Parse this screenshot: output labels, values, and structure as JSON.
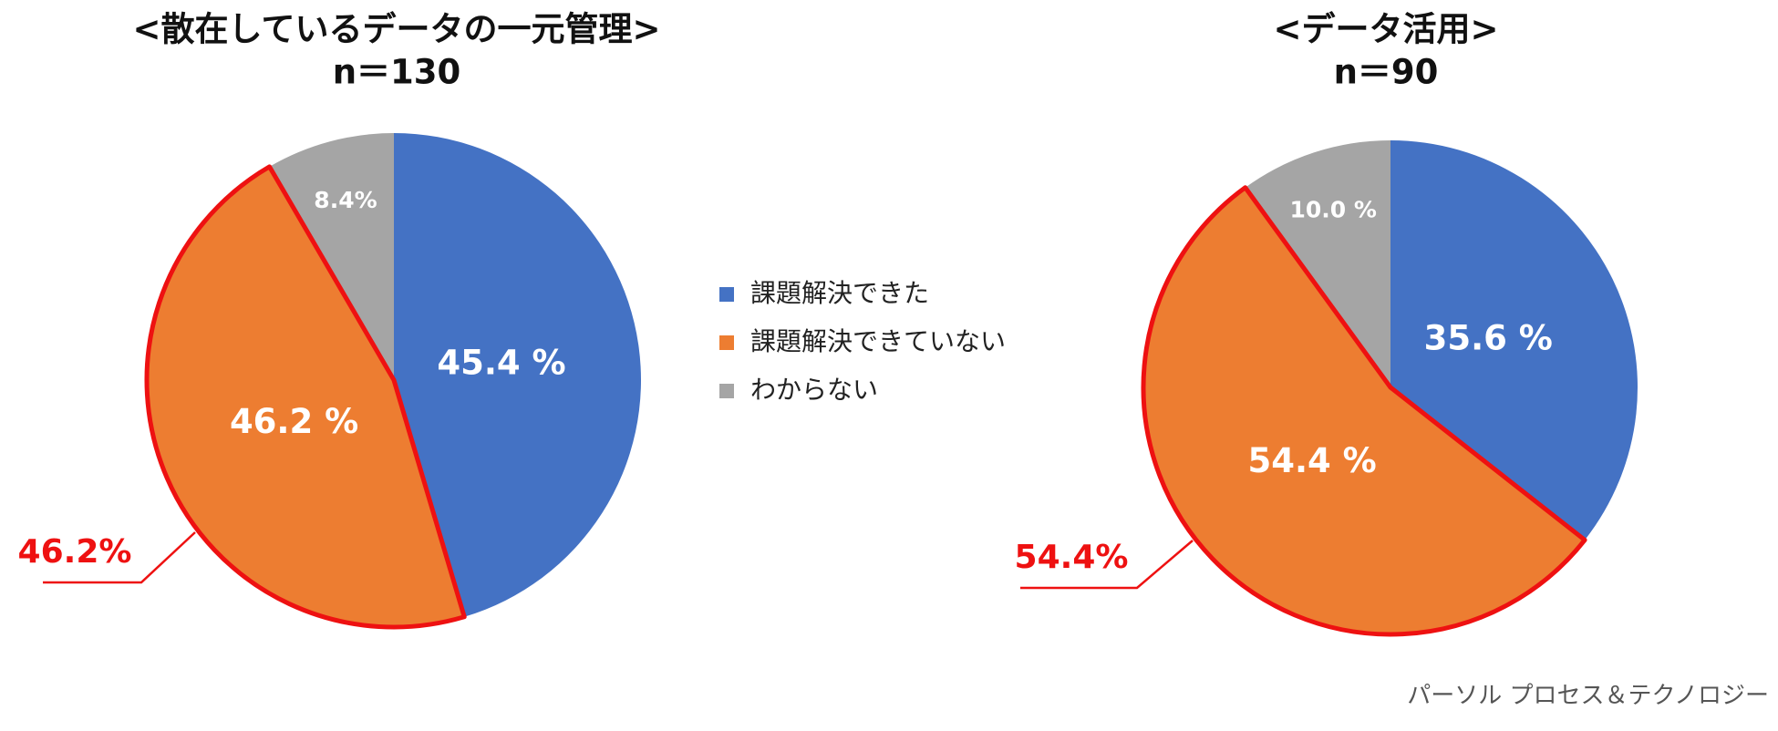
{
  "chart_data": [
    {
      "type": "pie",
      "title": "<散在しているデータの一元管理>",
      "subtitle": "n＝130",
      "values": [
        45.4,
        46.2,
        8.4
      ],
      "value_labels": [
        "45.4 %",
        "46.2 %",
        "8.4%"
      ],
      "highlight": {
        "index": 1,
        "color": "#ee1111",
        "label": "46.2%"
      }
    },
    {
      "type": "pie",
      "title": "<データ活用>",
      "subtitle": "n＝90",
      "values": [
        35.6,
        54.4,
        10.0
      ],
      "value_labels": [
        "35.6 %",
        "54.4 %",
        "10.0 %"
      ],
      "highlight": {
        "index": 1,
        "color": "#ee1111",
        "label": "54.4%"
      }
    }
  ],
  "legend": [
    {
      "name": "課題解決できた",
      "color": "#4472c4"
    },
    {
      "name": "課題解決できていない",
      "color": "#ed7d31"
    },
    {
      "name": "わからない",
      "color": "#a5a5a5"
    }
  ],
  "credit": "パーソル プロセス＆テクノロジー"
}
